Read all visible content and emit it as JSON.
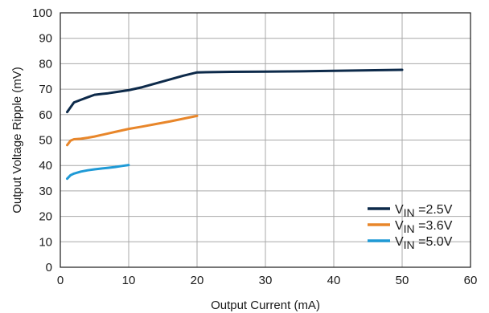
{
  "chart_data": {
    "type": "line",
    "xlabel": "Output Current (mA)",
    "ylabel": "Output Voltage Ripple (mV)",
    "xlim": [
      0,
      60
    ],
    "ylim": [
      0,
      100
    ],
    "x_ticks": [
      0,
      10,
      20,
      30,
      40,
      50,
      60
    ],
    "y_ticks": [
      0,
      10,
      20,
      30,
      40,
      50,
      60,
      70,
      80,
      90,
      100
    ],
    "grid": true,
    "legend_position": "bottom-right",
    "series": [
      {
        "name_prefix": "V",
        "name_sub": "IN",
        "name_suffix": " =2.5V",
        "color": "#0d2a4a",
        "x": [
          1,
          2,
          3,
          4,
          5,
          6,
          7,
          8,
          9,
          10,
          12,
          14,
          16,
          18,
          20,
          22,
          25,
          30,
          35,
          40,
          45,
          50
        ],
        "y": [
          61,
          64.8,
          65.8,
          66.8,
          67.8,
          68.1,
          68.4,
          68.8,
          69.2,
          69.6,
          70.8,
          72.3,
          73.8,
          75.3,
          76.6,
          76.7,
          76.8,
          76.9,
          77.0,
          77.2,
          77.4,
          77.6
        ]
      },
      {
        "name_prefix": "V",
        "name_sub": "IN",
        "name_suffix": " =3.6V",
        "color": "#e8862a",
        "x": [
          1,
          1.5,
          2,
          3,
          4,
          5,
          6,
          7,
          8,
          9,
          10,
          12,
          14,
          16,
          18,
          20
        ],
        "y": [
          48,
          49.8,
          50.3,
          50.5,
          50.9,
          51.4,
          52.0,
          52.6,
          53.2,
          53.8,
          54.4,
          55.3,
          56.3,
          57.3,
          58.4,
          59.5
        ]
      },
      {
        "name_prefix": "V",
        "name_sub": "IN",
        "name_suffix": " =5.0V",
        "color": "#1f9ad6",
        "x": [
          1,
          1.5,
          2,
          3,
          4,
          5,
          6,
          7,
          8,
          9,
          10
        ],
        "y": [
          34.8,
          36.2,
          36.8,
          37.6,
          38.1,
          38.5,
          38.8,
          39.1,
          39.4,
          39.8,
          40.2
        ]
      }
    ]
  }
}
